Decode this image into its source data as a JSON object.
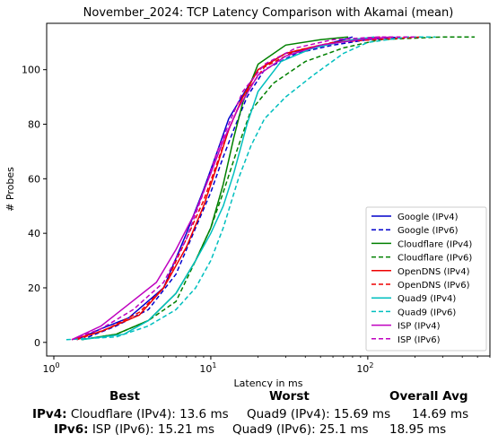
{
  "chart_data": {
    "type": "line",
    "title": "November_2024: TCP Latency Comparison with Akamai (mean)",
    "xlabel": "Latency in ms",
    "ylabel": "# Probes",
    "x_scale": "log",
    "xlim": [
      0.9,
      600
    ],
    "ylim": [
      -5,
      117
    ],
    "x_ticks": [
      {
        "value": 1,
        "label": "10^0"
      },
      {
        "value": 10,
        "label": "10^1"
      },
      {
        "value": 100,
        "label": "10^2"
      }
    ],
    "y_ticks": [
      0,
      20,
      40,
      60,
      80,
      100
    ],
    "legend_position": "lower right",
    "series": [
      {
        "name": "Google (IPv4)",
        "color": "#0000cc",
        "dash": "solid",
        "points": [
          [
            1.4,
            1
          ],
          [
            2.0,
            5
          ],
          [
            3.0,
            9
          ],
          [
            5.0,
            20
          ],
          [
            7.0,
            40
          ],
          [
            9.0,
            56
          ],
          [
            11.0,
            70
          ],
          [
            13.0,
            82
          ],
          [
            15.0,
            88
          ],
          [
            20.0,
            100
          ],
          [
            30.0,
            106
          ],
          [
            45.0,
            108
          ],
          [
            70.0,
            111
          ],
          [
            80.0,
            112
          ]
        ]
      },
      {
        "name": "Google (IPv6)",
        "color": "#0000cc",
        "dash": "dashed",
        "points": [
          [
            1.5,
            1
          ],
          [
            2.5,
            6
          ],
          [
            4.0,
            12
          ],
          [
            6.0,
            25
          ],
          [
            8.0,
            42
          ],
          [
            10.0,
            55
          ],
          [
            12.0,
            68
          ],
          [
            14.0,
            78
          ],
          [
            17.0,
            90
          ],
          [
            22.0,
            100
          ],
          [
            35.0,
            106
          ],
          [
            60.0,
            109
          ],
          [
            100.0,
            111
          ],
          [
            160.0,
            112
          ]
        ]
      },
      {
        "name": "Cloudflare (IPv4)",
        "color": "#008000",
        "dash": "solid",
        "points": [
          [
            1.5,
            1
          ],
          [
            2.5,
            3
          ],
          [
            4.0,
            8
          ],
          [
            6.0,
            18
          ],
          [
            8.0,
            30
          ],
          [
            10.0,
            42
          ],
          [
            12.0,
            58
          ],
          [
            14.0,
            75
          ],
          [
            16.0,
            88
          ],
          [
            20.0,
            102
          ],
          [
            30.0,
            109
          ],
          [
            50.0,
            111
          ],
          [
            75.0,
            112
          ]
        ]
      },
      {
        "name": "Cloudflare (IPv6)",
        "color": "#008000",
        "dash": "dashed",
        "points": [
          [
            1.5,
            1
          ],
          [
            2.5,
            3
          ],
          [
            4.0,
            8
          ],
          [
            6.0,
            15
          ],
          [
            8.0,
            30
          ],
          [
            10.0,
            42
          ],
          [
            12.0,
            55
          ],
          [
            15.0,
            72
          ],
          [
            18.0,
            85
          ],
          [
            25.0,
            95
          ],
          [
            40.0,
            103
          ],
          [
            70.0,
            108
          ],
          [
            120.0,
            111
          ],
          [
            300.0,
            112
          ],
          [
            480.0,
            112
          ]
        ]
      },
      {
        "name": "OpenDNS (IPv4)",
        "color": "#ee0000",
        "dash": "solid",
        "points": [
          [
            1.3,
            1
          ],
          [
            2.0,
            4
          ],
          [
            3.5,
            10
          ],
          [
            5.0,
            20
          ],
          [
            7.0,
            35
          ],
          [
            9.0,
            50
          ],
          [
            11.0,
            65
          ],
          [
            13.0,
            78
          ],
          [
            16.0,
            90
          ],
          [
            20.0,
            100
          ],
          [
            30.0,
            106
          ],
          [
            50.0,
            109
          ],
          [
            80.0,
            111
          ],
          [
            120.0,
            112
          ]
        ]
      },
      {
        "name": "OpenDNS (IPv6)",
        "color": "#ee0000",
        "dash": "dashed",
        "points": [
          [
            1.4,
            1
          ],
          [
            2.2,
            5
          ],
          [
            3.5,
            11
          ],
          [
            5.0,
            20
          ],
          [
            7.0,
            38
          ],
          [
            9.0,
            52
          ],
          [
            11.0,
            66
          ],
          [
            13.0,
            78
          ],
          [
            16.0,
            90
          ],
          [
            22.0,
            101
          ],
          [
            35.0,
            107
          ],
          [
            60.0,
            110
          ],
          [
            110.0,
            111
          ],
          [
            220.0,
            112
          ]
        ]
      },
      {
        "name": "Quad9 (IPv4)",
        "color": "#00bfbf",
        "dash": "solid",
        "points": [
          [
            1.5,
            1
          ],
          [
            2.8,
            3
          ],
          [
            4.0,
            8
          ],
          [
            6.0,
            18
          ],
          [
            8.0,
            30
          ],
          [
            10.0,
            40
          ],
          [
            12.0,
            50
          ],
          [
            14.0,
            62
          ],
          [
            17.0,
            80
          ],
          [
            20.0,
            92
          ],
          [
            28.0,
            103
          ],
          [
            45.0,
            108
          ],
          [
            80.0,
            111
          ],
          [
            110.0,
            112
          ]
        ]
      },
      {
        "name": "Quad9 (IPv6)",
        "color": "#00bfbf",
        "dash": "dashed",
        "points": [
          [
            1.2,
            1
          ],
          [
            2.5,
            2
          ],
          [
            4.0,
            6
          ],
          [
            6.0,
            12
          ],
          [
            8.0,
            20
          ],
          [
            10.0,
            30
          ],
          [
            12.0,
            42
          ],
          [
            15.0,
            60
          ],
          [
            18.0,
            72
          ],
          [
            22.0,
            82
          ],
          [
            30.0,
            90
          ],
          [
            45.0,
            98
          ],
          [
            70.0,
            106
          ],
          [
            100.0,
            110
          ],
          [
            180.0,
            112
          ],
          [
            270.0,
            112
          ]
        ]
      },
      {
        "name": "ISP (IPv4)",
        "color": "#bf00bf",
        "dash": "solid",
        "points": [
          [
            1.3,
            1
          ],
          [
            2.0,
            6
          ],
          [
            3.0,
            14
          ],
          [
            4.5,
            22
          ],
          [
            6.0,
            34
          ],
          [
            8.0,
            48
          ],
          [
            10.0,
            62
          ],
          [
            12.0,
            74
          ],
          [
            15.0,
            86
          ],
          [
            20.0,
            98
          ],
          [
            30.0,
            105
          ],
          [
            50.0,
            109
          ],
          [
            90.0,
            111
          ],
          [
            140.0,
            112
          ]
        ]
      },
      {
        "name": "ISP (IPv6)",
        "color": "#bf00bf",
        "dash": "dashed",
        "points": [
          [
            1.3,
            1
          ],
          [
            2.0,
            5
          ],
          [
            3.2,
            12
          ],
          [
            5.0,
            22
          ],
          [
            7.0,
            38
          ],
          [
            9.0,
            55
          ],
          [
            11.0,
            70
          ],
          [
            13.0,
            80
          ],
          [
            16.0,
            92
          ],
          [
            22.0,
            102
          ],
          [
            35.0,
            108
          ],
          [
            60.0,
            111
          ],
          [
            120.0,
            112
          ],
          [
            200.0,
            112
          ]
        ]
      }
    ]
  },
  "stats": {
    "best_header": "Best",
    "worst_header": "Worst",
    "avg_header": "Overall Avg",
    "ipv4": {
      "label": "IPv4",
      "best": "Cloudflare (IPv4): 13.6 ms",
      "worst": "Quad9 (IPv4): 15.69 ms",
      "avg": "14.69 ms"
    },
    "ipv6": {
      "label": "IPv6",
      "best": "ISP (IPv6): 15.21 ms",
      "worst": "Quad9 (IPv6): 25.1 ms",
      "avg": "18.95 ms"
    }
  }
}
